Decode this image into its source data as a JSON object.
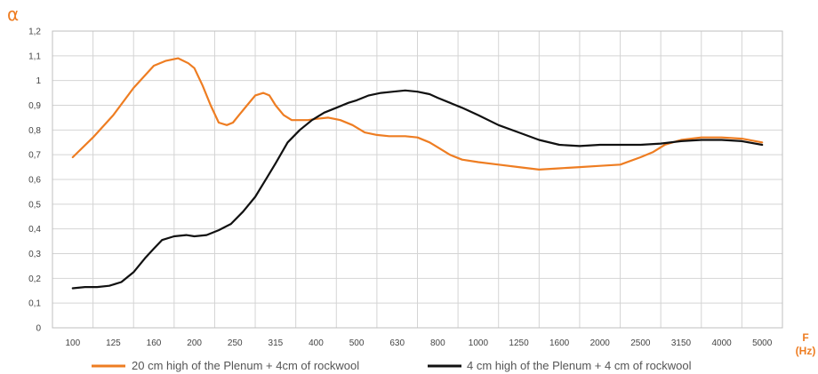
{
  "chart_data": {
    "type": "line",
    "title": "",
    "ylabel": "α",
    "xlabel": "F",
    "xlabel_unit": "(Hz)",
    "ylim": [
      0,
      1.2
    ],
    "yticks": [
      0,
      0.1,
      0.2,
      0.3,
      0.4,
      0.5,
      0.6,
      0.7,
      0.8,
      0.9,
      1,
      1.1,
      1.2
    ],
    "ytick_labels": [
      "0",
      "0,1",
      "0,2",
      "0,3",
      "0,4",
      "0,5",
      "0,6",
      "0,7",
      "0,8",
      "0,9",
      "1",
      "1,1",
      "1,2"
    ],
    "categories": [
      "100",
      "125",
      "160",
      "200",
      "250",
      "315",
      "400",
      "500",
      "630",
      "800",
      "1000",
      "1250",
      "1600",
      "2000",
      "2500",
      "3150",
      "4000",
      "5000"
    ],
    "grid": true,
    "legend_position": "bottom",
    "series": [
      {
        "name": "20 cm high of the Plenum + 4cm of rockwool",
        "color": "#ee7d22",
        "x": [
          0,
          0.5,
          1,
          1.5,
          2,
          2.3,
          2.6,
          2.85,
          3,
          3.2,
          3.4,
          3.6,
          3.8,
          3.95,
          4.1,
          4.3,
          4.5,
          4.7,
          4.85,
          5,
          5.2,
          5.4,
          5.6,
          5.8,
          6,
          6.3,
          6.6,
          6.9,
          7.2,
          7.5,
          7.8,
          8,
          8.2,
          8.5,
          8.8,
          9,
          9.3,
          9.6,
          10,
          10.5,
          11,
          11.5,
          12,
          12.5,
          13,
          13.5,
          14,
          14.3,
          14.6,
          15,
          15.5,
          16,
          16.5,
          17
        ],
        "values": [
          0.69,
          0.77,
          0.86,
          0.97,
          1.06,
          1.08,
          1.09,
          1.07,
          1.05,
          0.98,
          0.9,
          0.83,
          0.82,
          0.83,
          0.86,
          0.9,
          0.94,
          0.95,
          0.94,
          0.9,
          0.86,
          0.84,
          0.84,
          0.84,
          0.845,
          0.85,
          0.84,
          0.82,
          0.79,
          0.78,
          0.775,
          0.775,
          0.775,
          0.77,
          0.75,
          0.73,
          0.7,
          0.68,
          0.67,
          0.66,
          0.65,
          0.64,
          0.645,
          0.65,
          0.655,
          0.66,
          0.69,
          0.71,
          0.74,
          0.76,
          0.77,
          0.77,
          0.765,
          0.75
        ]
      },
      {
        "name": "4 cm high of the Plenum + 4 cm of rockwool",
        "color": "#111111",
        "x": [
          0,
          0.3,
          0.6,
          0.9,
          1.2,
          1.5,
          1.8,
          2,
          2.2,
          2.5,
          2.8,
          3,
          3.3,
          3.6,
          3.9,
          4.2,
          4.5,
          4.8,
          5,
          5.3,
          5.6,
          5.9,
          6.2,
          6.5,
          6.8,
          7,
          7.3,
          7.6,
          7.9,
          8.2,
          8.5,
          8.8,
          9,
          9.3,
          9.6,
          10,
          10.5,
          11,
          11.5,
          12,
          12.5,
          13,
          13.5,
          14,
          14.5,
          15,
          15.5,
          16,
          16.5,
          17
        ],
        "values": [
          0.16,
          0.165,
          0.165,
          0.17,
          0.185,
          0.225,
          0.285,
          0.32,
          0.355,
          0.37,
          0.375,
          0.37,
          0.375,
          0.395,
          0.42,
          0.47,
          0.53,
          0.61,
          0.665,
          0.75,
          0.8,
          0.84,
          0.87,
          0.89,
          0.91,
          0.92,
          0.94,
          0.95,
          0.955,
          0.96,
          0.955,
          0.945,
          0.93,
          0.91,
          0.89,
          0.86,
          0.82,
          0.79,
          0.76,
          0.74,
          0.735,
          0.74,
          0.74,
          0.74,
          0.745,
          0.755,
          0.76,
          0.76,
          0.755,
          0.74
        ]
      }
    ]
  }
}
